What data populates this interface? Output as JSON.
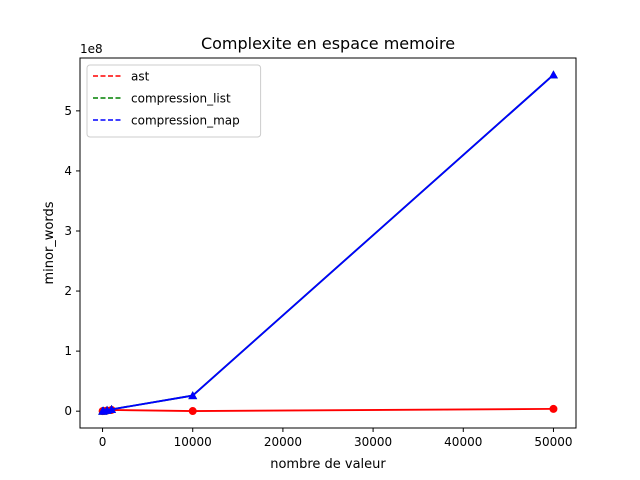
{
  "chart_data": {
    "type": "line",
    "title": "Complexite en espace memoire",
    "xlabel": "nombre de valeur",
    "ylabel": "minor_words",
    "y_offset_label": "1e8",
    "xlim": [
      -2500,
      52500
    ],
    "ylim": [
      -28000000,
      588000000
    ],
    "x_ticks": [
      0,
      10000,
      20000,
      30000,
      40000,
      50000
    ],
    "x_tick_labels": [
      "0",
      "10000",
      "20000",
      "30000",
      "40000",
      "50000"
    ],
    "y_ticks": [
      0,
      100000000,
      200000000,
      300000000,
      400000000,
      500000000
    ],
    "y_tick_labels": [
      "0",
      "1",
      "2",
      "3",
      "4",
      "5"
    ],
    "grid": false,
    "legend_position": "top-left",
    "series": [
      {
        "name": "ast",
        "color": "#ff0000",
        "marker": "circle",
        "x": [
          10,
          100,
          500,
          1000,
          10000,
          50000
        ],
        "y": [
          100000,
          300000,
          1000000,
          2000000,
          200000,
          3800000
        ]
      },
      {
        "name": "compression_list",
        "color": "#008000",
        "marker": "triangle",
        "x": [
          10,
          100,
          500,
          1000,
          10000,
          50000
        ],
        "y": [
          50000,
          400000,
          1500000,
          3000000,
          26000000,
          560000000
        ]
      },
      {
        "name": "compression_map",
        "color": "#0000ff",
        "marker": "triangle",
        "x": [
          10,
          100,
          500,
          1000,
          10000,
          50000
        ],
        "y": [
          50000,
          400000,
          1500000,
          3000000,
          26000000,
          560000000
        ]
      }
    ]
  }
}
